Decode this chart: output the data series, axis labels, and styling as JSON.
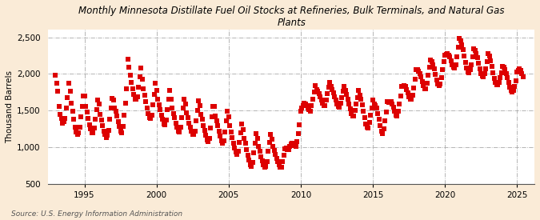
{
  "title": "Monthly Minnesota Distillate Fuel Oil Stocks at Refineries, Bulk Terminals, and Natural Gas\nPlants",
  "ylabel": "Thousand Barrels",
  "source": "Source: U.S. Energy Information Administration",
  "fig_background_color": "#faebd7",
  "plot_background_color": "#ffffff",
  "marker_color": "#dd0000",
  "marker": "s",
  "marker_size": 4,
  "ylim": [
    500,
    2600
  ],
  "yticks": [
    500,
    1000,
    1500,
    2000,
    2500
  ],
  "ytick_labels": [
    "500",
    "1,000",
    "1,500",
    "2,000",
    "2,500"
  ],
  "xlim_start": 1992.5,
  "xlim_end": 2026.2,
  "xticks": [
    1995,
    2000,
    2005,
    2010,
    2015,
    2020,
    2025
  ],
  "grid_color": "#aaaaaa",
  "grid_style": "-.",
  "data_monthly": [
    [
      1993.0,
      1980
    ],
    [
      1993.083,
      1870
    ],
    [
      1993.167,
      1760
    ],
    [
      1993.25,
      1560
    ],
    [
      1993.333,
      1450
    ],
    [
      1993.417,
      1390
    ],
    [
      1993.5,
      1330
    ],
    [
      1993.583,
      1350
    ],
    [
      1993.667,
      1390
    ],
    [
      1993.75,
      1530
    ],
    [
      1993.833,
      1680
    ],
    [
      1993.917,
      1870
    ],
    [
      1994.0,
      1760
    ],
    [
      1994.083,
      1600
    ],
    [
      1994.167,
      1490
    ],
    [
      1994.25,
      1380
    ],
    [
      1994.333,
      1270
    ],
    [
      1994.417,
      1210
    ],
    [
      1994.5,
      1170
    ],
    [
      1994.583,
      1200
    ],
    [
      1994.667,
      1270
    ],
    [
      1994.75,
      1410
    ],
    [
      1994.833,
      1560
    ],
    [
      1994.917,
      1700
    ],
    [
      1995.0,
      1700
    ],
    [
      1995.083,
      1560
    ],
    [
      1995.167,
      1480
    ],
    [
      1995.25,
      1390
    ],
    [
      1995.333,
      1310
    ],
    [
      1995.417,
      1250
    ],
    [
      1995.5,
      1200
    ],
    [
      1995.583,
      1200
    ],
    [
      1995.667,
      1260
    ],
    [
      1995.75,
      1380
    ],
    [
      1995.833,
      1510
    ],
    [
      1995.917,
      1640
    ],
    [
      1996.0,
      1590
    ],
    [
      1996.083,
      1450
    ],
    [
      1996.167,
      1370
    ],
    [
      1996.25,
      1290
    ],
    [
      1996.333,
      1220
    ],
    [
      1996.417,
      1170
    ],
    [
      1996.5,
      1130
    ],
    [
      1996.583,
      1160
    ],
    [
      1996.667,
      1230
    ],
    [
      1996.75,
      1380
    ],
    [
      1996.833,
      1540
    ],
    [
      1996.917,
      1670
    ],
    [
      1997.0,
      1640
    ],
    [
      1997.083,
      1540
    ],
    [
      1997.167,
      1490
    ],
    [
      1997.25,
      1430
    ],
    [
      1997.333,
      1350
    ],
    [
      1997.417,
      1280
    ],
    [
      1997.5,
      1220
    ],
    [
      1997.583,
      1200
    ],
    [
      1997.667,
      1280
    ],
    [
      1997.75,
      1440
    ],
    [
      1997.833,
      1600
    ],
    [
      1997.917,
      1800
    ],
    [
      1998.0,
      2200
    ],
    [
      1998.083,
      2090
    ],
    [
      1998.167,
      1980
    ],
    [
      1998.25,
      1890
    ],
    [
      1998.333,
      1800
    ],
    [
      1998.417,
      1720
    ],
    [
      1998.5,
      1660
    ],
    [
      1998.583,
      1650
    ],
    [
      1998.667,
      1690
    ],
    [
      1998.75,
      1820
    ],
    [
      1998.833,
      1960
    ],
    [
      1998.917,
      2080
    ],
    [
      1999.0,
      1930
    ],
    [
      1999.083,
      1800
    ],
    [
      1999.167,
      1710
    ],
    [
      1999.25,
      1620
    ],
    [
      1999.333,
      1540
    ],
    [
      1999.417,
      1460
    ],
    [
      1999.5,
      1400
    ],
    [
      1999.583,
      1390
    ],
    [
      1999.667,
      1440
    ],
    [
      1999.75,
      1580
    ],
    [
      1999.833,
      1720
    ],
    [
      1999.917,
      1870
    ],
    [
      2000.0,
      1780
    ],
    [
      2000.083,
      1650
    ],
    [
      2000.167,
      1580
    ],
    [
      2000.25,
      1510
    ],
    [
      2000.333,
      1440
    ],
    [
      2000.417,
      1380
    ],
    [
      2000.5,
      1320
    ],
    [
      2000.583,
      1310
    ],
    [
      2000.667,
      1370
    ],
    [
      2000.75,
      1510
    ],
    [
      2000.833,
      1650
    ],
    [
      2000.917,
      1780
    ],
    [
      2001.0,
      1660
    ],
    [
      2001.083,
      1530
    ],
    [
      2001.167,
      1460
    ],
    [
      2001.25,
      1400
    ],
    [
      2001.333,
      1330
    ],
    [
      2001.417,
      1270
    ],
    [
      2001.5,
      1220
    ],
    [
      2001.583,
      1210
    ],
    [
      2001.667,
      1270
    ],
    [
      2001.75,
      1400
    ],
    [
      2001.833,
      1540
    ],
    [
      2001.917,
      1660
    ],
    [
      2002.0,
      1590
    ],
    [
      2002.083,
      1470
    ],
    [
      2002.167,
      1400
    ],
    [
      2002.25,
      1330
    ],
    [
      2002.333,
      1270
    ],
    [
      2002.417,
      1220
    ],
    [
      2002.5,
      1180
    ],
    [
      2002.583,
      1170
    ],
    [
      2002.667,
      1220
    ],
    [
      2002.75,
      1360
    ],
    [
      2002.833,
      1500
    ],
    [
      2002.917,
      1630
    ],
    [
      2003.0,
      1570
    ],
    [
      2003.083,
      1450
    ],
    [
      2003.167,
      1380
    ],
    [
      2003.25,
      1300
    ],
    [
      2003.333,
      1230
    ],
    [
      2003.417,
      1160
    ],
    [
      2003.5,
      1100
    ],
    [
      2003.583,
      1080
    ],
    [
      2003.667,
      1120
    ],
    [
      2003.75,
      1260
    ],
    [
      2003.833,
      1410
    ],
    [
      2003.917,
      1560
    ],
    [
      2004.0,
      1560
    ],
    [
      2004.083,
      1430
    ],
    [
      2004.167,
      1360
    ],
    [
      2004.25,
      1290
    ],
    [
      2004.333,
      1220
    ],
    [
      2004.417,
      1150
    ],
    [
      2004.5,
      1090
    ],
    [
      2004.583,
      1060
    ],
    [
      2004.667,
      1090
    ],
    [
      2004.75,
      1210
    ],
    [
      2004.833,
      1360
    ],
    [
      2004.917,
      1490
    ],
    [
      2005.0,
      1420
    ],
    [
      2005.083,
      1290
    ],
    [
      2005.167,
      1210
    ],
    [
      2005.25,
      1130
    ],
    [
      2005.333,
      1060
    ],
    [
      2005.417,
      990
    ],
    [
      2005.5,
      930
    ],
    [
      2005.583,
      900
    ],
    [
      2005.667,
      940
    ],
    [
      2005.75,
      1070
    ],
    [
      2005.833,
      1200
    ],
    [
      2005.917,
      1320
    ],
    [
      2006.0,
      1240
    ],
    [
      2006.083,
      1120
    ],
    [
      2006.167,
      1050
    ],
    [
      2006.25,
      970
    ],
    [
      2006.333,
      890
    ],
    [
      2006.417,
      820
    ],
    [
      2006.5,
      760
    ],
    [
      2006.583,
      740
    ],
    [
      2006.667,
      790
    ],
    [
      2006.75,
      920
    ],
    [
      2006.833,
      1060
    ],
    [
      2006.917,
      1190
    ],
    [
      2007.0,
      1120
    ],
    [
      2007.083,
      1010
    ],
    [
      2007.167,
      950
    ],
    [
      2007.25,
      870
    ],
    [
      2007.333,
      810
    ],
    [
      2007.417,
      760
    ],
    [
      2007.5,
      730
    ],
    [
      2007.583,
      740
    ],
    [
      2007.667,
      800
    ],
    [
      2007.75,
      940
    ],
    [
      2007.833,
      1070
    ],
    [
      2007.917,
      1170
    ],
    [
      2008.0,
      1110
    ],
    [
      2008.083,
      1010
    ],
    [
      2008.167,
      960
    ],
    [
      2008.25,
      900
    ],
    [
      2008.333,
      850
    ],
    [
      2008.417,
      800
    ],
    [
      2008.5,
      760
    ],
    [
      2008.583,
      730
    ],
    [
      2008.667,
      730
    ],
    [
      2008.75,
      800
    ],
    [
      2008.833,
      890
    ],
    [
      2008.917,
      980
    ],
    [
      2009.0,
      990
    ],
    [
      2009.083,
      970
    ],
    [
      2009.167,
      970
    ],
    [
      2009.25,
      1010
    ],
    [
      2009.333,
      1040
    ],
    [
      2009.417,
      1050
    ],
    [
      2009.5,
      1030
    ],
    [
      2009.583,
      1020
    ],
    [
      2009.667,
      1010
    ],
    [
      2009.75,
      1080
    ],
    [
      2009.833,
      1190
    ],
    [
      2009.917,
      1310
    ],
    [
      2010.0,
      1490
    ],
    [
      2010.083,
      1530
    ],
    [
      2010.167,
      1570
    ],
    [
      2010.25,
      1600
    ],
    [
      2010.333,
      1590
    ],
    [
      2010.417,
      1570
    ],
    [
      2010.5,
      1530
    ],
    [
      2010.583,
      1510
    ],
    [
      2010.667,
      1490
    ],
    [
      2010.75,
      1570
    ],
    [
      2010.833,
      1660
    ],
    [
      2010.917,
      1750
    ],
    [
      2011.0,
      1840
    ],
    [
      2011.083,
      1790
    ],
    [
      2011.167,
      1760
    ],
    [
      2011.25,
      1730
    ],
    [
      2011.333,
      1690
    ],
    [
      2011.417,
      1640
    ],
    [
      2011.5,
      1600
    ],
    [
      2011.583,
      1570
    ],
    [
      2011.667,
      1570
    ],
    [
      2011.75,
      1640
    ],
    [
      2011.833,
      1730
    ],
    [
      2011.917,
      1820
    ],
    [
      2012.0,
      1880
    ],
    [
      2012.083,
      1830
    ],
    [
      2012.167,
      1790
    ],
    [
      2012.25,
      1740
    ],
    [
      2012.333,
      1690
    ],
    [
      2012.417,
      1640
    ],
    [
      2012.5,
      1590
    ],
    [
      2012.583,
      1560
    ],
    [
      2012.667,
      1550
    ],
    [
      2012.75,
      1600
    ],
    [
      2012.833,
      1680
    ],
    [
      2012.917,
      1760
    ],
    [
      2013.0,
      1830
    ],
    [
      2013.083,
      1770
    ],
    [
      2013.167,
      1720
    ],
    [
      2013.25,
      1660
    ],
    [
      2013.333,
      1590
    ],
    [
      2013.417,
      1520
    ],
    [
      2013.5,
      1460
    ],
    [
      2013.583,
      1430
    ],
    [
      2013.667,
      1430
    ],
    [
      2013.75,
      1500
    ],
    [
      2013.833,
      1590
    ],
    [
      2013.917,
      1680
    ],
    [
      2014.0,
      1780
    ],
    [
      2014.083,
      1710
    ],
    [
      2014.167,
      1650
    ],
    [
      2014.25,
      1580
    ],
    [
      2014.333,
      1490
    ],
    [
      2014.417,
      1400
    ],
    [
      2014.5,
      1320
    ],
    [
      2014.583,
      1270
    ],
    [
      2014.667,
      1260
    ],
    [
      2014.75,
      1340
    ],
    [
      2014.833,
      1440
    ],
    [
      2014.917,
      1540
    ],
    [
      2015.0,
      1640
    ],
    [
      2015.083,
      1590
    ],
    [
      2015.167,
      1570
    ],
    [
      2015.25,
      1530
    ],
    [
      2015.333,
      1460
    ],
    [
      2015.417,
      1380
    ],
    [
      2015.5,
      1290
    ],
    [
      2015.583,
      1220
    ],
    [
      2015.667,
      1190
    ],
    [
      2015.75,
      1250
    ],
    [
      2015.833,
      1360
    ],
    [
      2015.917,
      1480
    ],
    [
      2016.0,
      1620
    ],
    [
      2016.083,
      1610
    ],
    [
      2016.167,
      1620
    ],
    [
      2016.25,
      1620
    ],
    [
      2016.333,
      1590
    ],
    [
      2016.417,
      1550
    ],
    [
      2016.5,
      1490
    ],
    [
      2016.583,
      1440
    ],
    [
      2016.667,
      1430
    ],
    [
      2016.75,
      1490
    ],
    [
      2016.833,
      1590
    ],
    [
      2016.917,
      1700
    ],
    [
      2017.0,
      1830
    ],
    [
      2017.083,
      1830
    ],
    [
      2017.167,
      1840
    ],
    [
      2017.25,
      1830
    ],
    [
      2017.333,
      1790
    ],
    [
      2017.417,
      1740
    ],
    [
      2017.5,
      1690
    ],
    [
      2017.583,
      1660
    ],
    [
      2017.667,
      1650
    ],
    [
      2017.75,
      1710
    ],
    [
      2017.833,
      1810
    ],
    [
      2017.917,
      1930
    ],
    [
      2018.0,
      2060
    ],
    [
      2018.083,
      2060
    ],
    [
      2018.167,
      2040
    ],
    [
      2018.25,
      2010
    ],
    [
      2018.333,
      1960
    ],
    [
      2018.417,
      1900
    ],
    [
      2018.5,
      1840
    ],
    [
      2018.583,
      1800
    ],
    [
      2018.667,
      1800
    ],
    [
      2018.75,
      1870
    ],
    [
      2018.833,
      1980
    ],
    [
      2018.917,
      2090
    ],
    [
      2019.0,
      2190
    ],
    [
      2019.083,
      2170
    ],
    [
      2019.167,
      2130
    ],
    [
      2019.25,
      2070
    ],
    [
      2019.333,
      1990
    ],
    [
      2019.417,
      1920
    ],
    [
      2019.5,
      1860
    ],
    [
      2019.583,
      1840
    ],
    [
      2019.667,
      1860
    ],
    [
      2019.75,
      1950
    ],
    [
      2019.833,
      2060
    ],
    [
      2019.917,
      2170
    ],
    [
      2020.0,
      2260
    ],
    [
      2020.083,
      2270
    ],
    [
      2020.167,
      2280
    ],
    [
      2020.25,
      2260
    ],
    [
      2020.333,
      2230
    ],
    [
      2020.417,
      2180
    ],
    [
      2020.5,
      2130
    ],
    [
      2020.583,
      2090
    ],
    [
      2020.667,
      2080
    ],
    [
      2020.75,
      2130
    ],
    [
      2020.833,
      2230
    ],
    [
      2020.917,
      2370
    ],
    [
      2021.0,
      2480
    ],
    [
      2021.083,
      2450
    ],
    [
      2021.167,
      2400
    ],
    [
      2021.25,
      2330
    ],
    [
      2021.333,
      2250
    ],
    [
      2021.417,
      2160
    ],
    [
      2021.5,
      2080
    ],
    [
      2021.583,
      2030
    ],
    [
      2021.667,
      2020
    ],
    [
      2021.75,
      2060
    ],
    [
      2021.833,
      2130
    ],
    [
      2021.917,
      2230
    ],
    [
      2022.0,
      2340
    ],
    [
      2022.083,
      2320
    ],
    [
      2022.167,
      2280
    ],
    [
      2022.25,
      2220
    ],
    [
      2022.333,
      2150
    ],
    [
      2022.417,
      2070
    ],
    [
      2022.5,
      2010
    ],
    [
      2022.583,
      1970
    ],
    [
      2022.667,
      1960
    ],
    [
      2022.75,
      2000
    ],
    [
      2022.833,
      2070
    ],
    [
      2022.917,
      2170
    ],
    [
      2023.0,
      2280
    ],
    [
      2023.083,
      2240
    ],
    [
      2023.167,
      2180
    ],
    [
      2023.25,
      2100
    ],
    [
      2023.333,
      2020
    ],
    [
      2023.417,
      1940
    ],
    [
      2023.5,
      1880
    ],
    [
      2023.583,
      1850
    ],
    [
      2023.667,
      1850
    ],
    [
      2023.75,
      1890
    ],
    [
      2023.833,
      1950
    ],
    [
      2023.917,
      2020
    ],
    [
      2024.0,
      2100
    ],
    [
      2024.083,
      2090
    ],
    [
      2024.167,
      2060
    ],
    [
      2024.25,
      2010
    ],
    [
      2024.333,
      1950
    ],
    [
      2024.417,
      1880
    ],
    [
      2024.5,
      1820
    ],
    [
      2024.583,
      1770
    ],
    [
      2024.667,
      1750
    ],
    [
      2024.75,
      1780
    ],
    [
      2024.833,
      1830
    ],
    [
      2024.917,
      1910
    ],
    [
      2025.0,
      2030
    ],
    [
      2025.083,
      2050
    ],
    [
      2025.167,
      2070
    ],
    [
      2025.25,
      2050
    ],
    [
      2025.333,
      2010
    ],
    [
      2025.417,
      1960
    ]
  ]
}
